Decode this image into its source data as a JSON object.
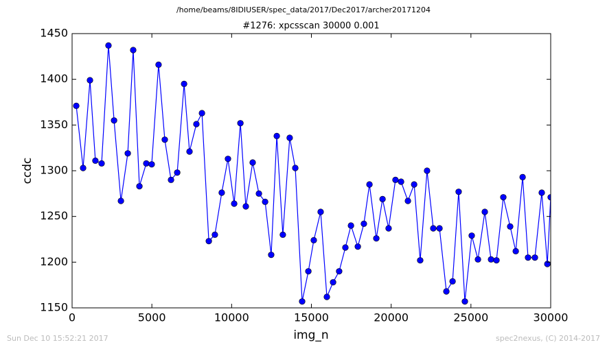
{
  "chart_data": {
    "type": "line",
    "suptitle": "/home/beams/8IDIUSER/spec_data/2017/Dec2017/archer20171204",
    "title": "#1276: xpcsscan 30000 0.001",
    "xlabel": "img_n",
    "ylabel": "ccdc",
    "footer_left": "Sun Dec 10 15:52:21 2017",
    "footer_right": "spec2nexus, (C) 2014-2017",
    "x": [
      260,
      690,
      1120,
      1460,
      1850,
      2280,
      2630,
      3060,
      3490,
      3830,
      4220,
      4650,
      4990,
      5420,
      5810,
      6200,
      6590,
      7020,
      7360,
      7790,
      8140,
      8570,
      8950,
      9380,
      9770,
      10160,
      10550,
      10890,
      11320,
      11710,
      12100,
      12480,
      12830,
      13210,
      13640,
      13990,
      14420,
      14810,
      15150,
      15580,
      15970,
      16360,
      16740,
      17130,
      17480,
      17910,
      18290,
      18640,
      19070,
      19460,
      19840,
      20270,
      20620,
      21050,
      21440,
      21820,
      22250,
      22640,
      23030,
      23460,
      23850,
      24230,
      24620,
      25050,
      25440,
      25870,
      26260,
      26600,
      27030,
      27460,
      27810,
      28240,
      28580,
      29010,
      29440,
      29790,
      30000
    ],
    "series": [
      {
        "name": "ccdc",
        "color": "#0000ff",
        "values": [
          1371,
          1303,
          1399,
          1311,
          1308,
          1437,
          1355,
          1267,
          1319,
          1432,
          1283,
          1308,
          1307,
          1416,
          1334,
          1290,
          1298,
          1395,
          1321,
          1351,
          1363,
          1223,
          1230,
          1276,
          1313,
          1264,
          1352,
          1261,
          1309,
          1275,
          1266,
          1208,
          1338,
          1230,
          1336,
          1303,
          1157,
          1190,
          1224,
          1255,
          1162,
          1178,
          1190,
          1216,
          1240,
          1217,
          1242,
          1285,
          1226,
          1269,
          1237,
          1290,
          1288,
          1267,
          1285,
          1202,
          1300,
          1237,
          1237,
          1168,
          1179,
          1277,
          1157,
          1229,
          1203,
          1255,
          1203,
          1202,
          1271,
          1239,
          1212,
          1293,
          1205,
          1205,
          1276,
          1198,
          1271
        ]
      }
    ],
    "xlim": [
      0,
      30000
    ],
    "ylim": [
      1150,
      1450
    ],
    "xticks": [
      0,
      5000,
      10000,
      15000,
      20000,
      25000,
      30000
    ],
    "yticks": [
      1150,
      1200,
      1250,
      1300,
      1350,
      1400,
      1450
    ],
    "grid": false
  }
}
